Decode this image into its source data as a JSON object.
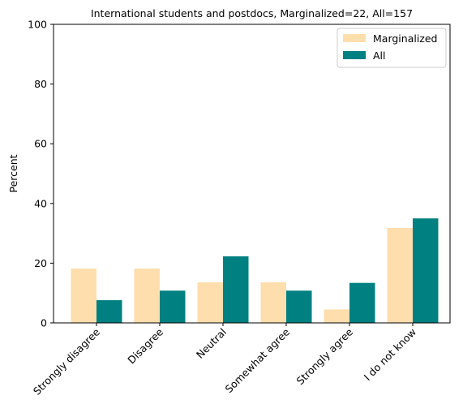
{
  "chart_data": {
    "type": "bar",
    "title": "International students and postdocs, Marginalized=22, All=157",
    "xlabel": "",
    "ylabel": "Percent",
    "ylim": [
      0,
      100
    ],
    "yticks": [
      0,
      20,
      40,
      60,
      80,
      100
    ],
    "categories": [
      "Strongly disagree",
      "Disagree",
      "Neutral",
      "Somewhat agree",
      "Strongly agree",
      "I do not know"
    ],
    "series": [
      {
        "name": "Marginalized",
        "color": "#FFDEAD",
        "values": [
          18.2,
          18.2,
          13.6,
          13.6,
          4.5,
          31.8
        ]
      },
      {
        "name": "All",
        "color": "#008080",
        "values": [
          7.6,
          10.8,
          22.3,
          10.8,
          13.4,
          35.0
        ]
      }
    ],
    "legend_position": "top-right",
    "grid": false
  }
}
